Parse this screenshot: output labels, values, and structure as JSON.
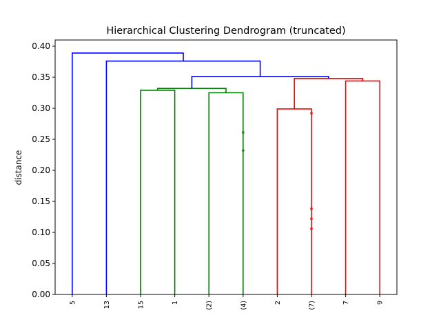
{
  "chart_data": {
    "type": "dendrogram",
    "title": "Hierarchical Clustering Dendrogram (truncated)",
    "xlabel": "",
    "ylabel": "distance",
    "ylim": [
      0,
      0.41
    ],
    "yticks": [
      "0.00",
      "0.05",
      "0.10",
      "0.15",
      "0.20",
      "0.25",
      "0.30",
      "0.35",
      "0.40"
    ],
    "leaves": [
      "5",
      "13",
      "15",
      "1",
      "(2)",
      "(4)",
      "2",
      "(7)",
      "7",
      "9"
    ],
    "links": [
      {
        "left": 2,
        "right": 3,
        "height": 0.329,
        "color": "#008000"
      },
      {
        "left": 7,
        "right": 6,
        "height": 0.299,
        "color": "#ff0000"
      },
      {
        "left": 4,
        "right": 5,
        "height": 0.325,
        "color": "#008000"
      },
      {
        "left": 8,
        "right": 9,
        "height": 0.344,
        "color": "#ff0000"
      },
      {
        "left": 10,
        "right": 12,
        "height": 0.332,
        "color": "#008000"
      },
      {
        "left": 11,
        "right": 13,
        "height": 0.348,
        "color": "#ff0000"
      },
      {
        "left": 14,
        "right": 15,
        "height": 0.351,
        "color": "#0000ff"
      },
      {
        "left": 1,
        "right": 16,
        "height": 0.376,
        "color": "#0000ff"
      },
      {
        "left": 0,
        "right": 17,
        "height": 0.389,
        "color": "#0000ff"
      }
    ],
    "truncation_markers": [
      {
        "leaf": 5,
        "height": 0.232,
        "color": "#008000"
      },
      {
        "leaf": 5,
        "height": 0.261,
        "color": "#008000"
      },
      {
        "leaf": 7,
        "height": 0.106,
        "color": "#ff0000"
      },
      {
        "leaf": 7,
        "height": 0.122,
        "color": "#ff0000"
      },
      {
        "leaf": 7,
        "height": 0.138,
        "color": "#ff0000"
      },
      {
        "leaf": 7,
        "height": 0.292,
        "color": "#ff0000"
      }
    ],
    "colors": {
      "cluster_a": "#008000",
      "cluster_b": "#ff0000",
      "above_threshold": "#0000ff"
    },
    "grid": false,
    "legend": "none"
  }
}
